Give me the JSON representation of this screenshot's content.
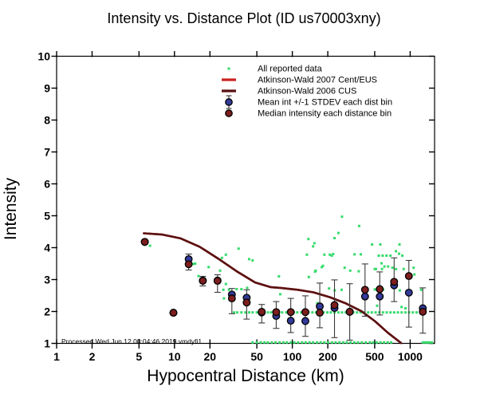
{
  "title": "Intensity vs. Distance Plot (ID us70003xny)",
  "footer": "Processed Wed Jun 12 00:04:46 2019 vmdyfi1",
  "colors": {
    "reported_green": "#35dc6b",
    "aw2007_red": "#cc2222",
    "aw2006_dark": "#5a1112",
    "mean_blue": "#333a99",
    "median_darkred": "#7d1e1e",
    "errorbar_gray": "#3a3a3a",
    "axis_black": "#000000"
  },
  "legend": [
    {
      "label": "All reported data",
      "marker": "dot",
      "color": "#35dc6b"
    },
    {
      "label": "Atkinson-Wald 2007 Cent/EUS",
      "marker": "line",
      "color": "#cc2222"
    },
    {
      "label": "Atkinson-Wald 2006 CUS",
      "marker": "line",
      "color": "#5a1112"
    },
    {
      "label": "Mean int +/-1 STDEV each dist bin",
      "marker": "mean",
      "color": "#333a99"
    },
    {
      "label": "Median intensity each distance bin",
      "marker": "median",
      "color": "#7d1e1e"
    }
  ],
  "chart_data": {
    "type": "scatter",
    "title": "Intensity vs. Distance Plot (ID us70003xny)",
    "xlabel": "Hypocentral Distance (km)",
    "ylabel": "Intensity",
    "x_scale": "log",
    "xlim": [
      1,
      1611
    ],
    "ylim": [
      1,
      10
    ],
    "x_ticks": [
      1,
      2,
      5,
      10,
      20,
      50,
      100,
      200,
      500,
      1000
    ],
    "y_ticks": [
      1,
      2,
      3,
      4,
      5,
      6,
      7,
      8,
      9,
      10
    ],
    "grid": false,
    "legend_position": "upper-center-right",
    "all_reported_points": [
      [
        6.2,
        4.06
      ],
      [
        12.7,
        3.45
      ],
      [
        14.4,
        3.49
      ],
      [
        15,
        3.5
      ],
      [
        16,
        3.11
      ],
      [
        19.5,
        3.39
      ],
      [
        24.4,
        3.28
      ],
      [
        25.3,
        3.68
      ],
      [
        26,
        2.68
      ],
      [
        26.3,
        2.41
      ],
      [
        27.3,
        3.78
      ],
      [
        27.3,
        2.86
      ],
      [
        29,
        2.68
      ],
      [
        33.7,
        2.7
      ],
      [
        35,
        3.97
      ],
      [
        37,
        2.7
      ],
      [
        41.4,
        2.74
      ],
      [
        43,
        3.64
      ],
      [
        46,
        3.6
      ],
      [
        77,
        3.1
      ],
      [
        79,
        2.54
      ],
      [
        133,
        3.78
      ],
      [
        137,
        4.27
      ],
      [
        138,
        3.08
      ],
      [
        150,
        4.04
      ],
      [
        154,
        4.14
      ],
      [
        156,
        3.25
      ],
      [
        158,
        3.28
      ],
      [
        163,
        2.26
      ],
      [
        178,
        3.39
      ],
      [
        182,
        3.43
      ],
      [
        187,
        3.78
      ],
      [
        205,
        2.72
      ],
      [
        208,
        3.78
      ],
      [
        216,
        3.75
      ],
      [
        222,
        3.8
      ],
      [
        228,
        4.3
      ],
      [
        229,
        2.66
      ],
      [
        246,
        4.46
      ],
      [
        262,
        2.68
      ],
      [
        264,
        4.97
      ],
      [
        278,
        3.37
      ],
      [
        310,
        3.28
      ],
      [
        337,
        3.79
      ],
      [
        366,
        3.26
      ],
      [
        369,
        4.68
      ],
      [
        381,
        3.79
      ],
      [
        475,
        4.1
      ],
      [
        501,
        3.33
      ],
      [
        501,
        2.69
      ],
      [
        512,
        3.33
      ],
      [
        512,
        2.69
      ],
      [
        524,
        2.18
      ],
      [
        542,
        3.75
      ],
      [
        558,
        4.1
      ],
      [
        571,
        3.51
      ],
      [
        577,
        3.33
      ],
      [
        584,
        3.75
      ],
      [
        590,
        2.69
      ],
      [
        605,
        3.41
      ],
      [
        630,
        3.75
      ],
      [
        650,
        3.41
      ],
      [
        680,
        3.75
      ],
      [
        707,
        3.37
      ],
      [
        758,
        3.89
      ],
      [
        758,
        3.33
      ],
      [
        805,
        3.81
      ],
      [
        812,
        4.1
      ],
      [
        816,
        2.66
      ],
      [
        845,
        2.14
      ],
      [
        858,
        3.75
      ],
      [
        880,
        3.33
      ],
      [
        912,
        2.1
      ],
      [
        1070,
        3.37
      ],
      [
        1086,
        3.16
      ],
      [
        1240,
        2.68
      ],
      [
        32,
        1.97
      ],
      [
        34,
        1.97
      ],
      [
        37,
        1.97
      ],
      [
        40,
        1.97
      ],
      [
        43,
        1.97
      ],
      [
        46,
        1.97
      ],
      [
        50,
        1.97
      ],
      [
        53,
        1.97
      ],
      [
        57,
        1.97
      ],
      [
        62,
        1.97
      ],
      [
        66,
        1.97
      ],
      [
        71,
        1.97
      ],
      [
        77,
        1.97
      ],
      [
        82,
        1.97
      ],
      [
        89,
        1.97
      ],
      [
        95,
        1.97
      ],
      [
        103,
        1.97
      ],
      [
        110,
        1.97
      ],
      [
        119,
        1.97
      ],
      [
        128,
        1.97
      ],
      [
        137,
        1.97
      ],
      [
        148,
        1.97
      ],
      [
        159,
        1.97
      ],
      [
        171,
        1.97
      ],
      [
        184,
        1.97
      ],
      [
        198,
        1.97
      ],
      [
        212,
        1.97
      ],
      [
        228,
        1.97
      ],
      [
        246,
        1.97
      ],
      [
        264,
        1.97
      ],
      [
        284,
        1.97
      ],
      [
        306,
        1.97
      ],
      [
        329,
        1.97
      ],
      [
        354,
        1.97
      ],
      [
        380,
        1.97
      ],
      [
        409,
        1.97
      ],
      [
        440,
        1.97
      ],
      [
        473,
        1.97
      ],
      [
        509,
        1.97
      ],
      [
        547,
        1.97
      ],
      [
        588,
        1.97
      ],
      [
        633,
        1.97
      ],
      [
        681,
        1.97
      ],
      [
        732,
        1.97
      ],
      [
        787,
        1.97
      ],
      [
        847,
        1.97
      ],
      [
        911,
        1.97
      ],
      [
        979,
        1.97
      ],
      [
        1053,
        1.97
      ],
      [
        1133,
        1.97
      ],
      [
        1218,
        1.97
      ],
      [
        46,
        1.03
      ],
      [
        50,
        1.03
      ],
      [
        54,
        1.03
      ],
      [
        58,
        1.03
      ],
      [
        62,
        1.03
      ],
      [
        67,
        1.03
      ],
      [
        72,
        1.03
      ],
      [
        78,
        1.03
      ],
      [
        84,
        1.03
      ],
      [
        90,
        1.03
      ],
      [
        97,
        1.03
      ],
      [
        104,
        1.03
      ],
      [
        112,
        1.03
      ],
      [
        121,
        1.03
      ],
      [
        130,
        1.03
      ],
      [
        140,
        1.03
      ],
      [
        150,
        1.03
      ],
      [
        162,
        1.03
      ],
      [
        174,
        1.03
      ],
      [
        187,
        1.03
      ],
      [
        201,
        1.03
      ],
      [
        217,
        1.03
      ],
      [
        233,
        1.03
      ],
      [
        251,
        1.03
      ],
      [
        270,
        1.03
      ],
      [
        290,
        1.03
      ],
      [
        312,
        1.03
      ],
      [
        336,
        1.03
      ],
      [
        361,
        1.03
      ],
      [
        389,
        1.03
      ],
      [
        420,
        1.03
      ],
      [
        455,
        1.03
      ],
      [
        485,
        1.03
      ],
      [
        520,
        1.03
      ],
      [
        560,
        1.03
      ],
      [
        600,
        1.03
      ],
      [
        645,
        1.03
      ],
      [
        690,
        1.03
      ],
      [
        1280,
        1.03
      ],
      [
        1340,
        1.03
      ],
      [
        1400,
        1.03
      ],
      [
        1460,
        1.03
      ],
      [
        1530,
        1.03
      ]
    ],
    "aw2006_curve": [
      [
        5.5,
        4.45
      ],
      [
        7.9,
        4.41
      ],
      [
        11.3,
        4.29
      ],
      [
        16.3,
        4.03
      ],
      [
        23.4,
        3.66
      ],
      [
        33.7,
        3.26
      ],
      [
        48.3,
        2.91
      ],
      [
        66,
        2.76
      ],
      [
        79,
        2.74
      ],
      [
        111,
        2.68
      ],
      [
        151,
        2.6
      ],
      [
        207,
        2.45
      ],
      [
        282,
        2.26
      ],
      [
        385,
        2.01
      ],
      [
        501,
        1.7
      ],
      [
        648,
        1.33
      ],
      [
        838,
        1.01
      ]
    ],
    "distance_bins": [
      {
        "d": 5.6,
        "mean": 4.18,
        "median": 4.18,
        "lo": null,
        "hi": null
      },
      {
        "d": 9.8,
        "mean": 1.96,
        "median": 1.96,
        "lo": null,
        "hi": null
      },
      {
        "d": 13.2,
        "mean": 3.64,
        "median": 3.48,
        "lo": 3.3,
        "hi": 3.8
      },
      {
        "d": 17.4,
        "mean": 2.97,
        "median": 2.96,
        "lo": 2.8,
        "hi": 3.1
      },
      {
        "d": 23.2,
        "mean": 2.97,
        "median": 2.96,
        "lo": 2.6,
        "hi": 3.15
      },
      {
        "d": 30.7,
        "mean": 2.53,
        "median": 2.41,
        "lo": 1.93,
        "hi": 2.72
      },
      {
        "d": 41,
        "mean": 2.43,
        "median": 2.28,
        "lo": 1.76,
        "hi": 2.68
      },
      {
        "d": 55,
        "mean": 1.97,
        "median": 1.99,
        "lo": 1.64,
        "hi": 2.22
      },
      {
        "d": 73,
        "mean": 1.86,
        "median": 1.98,
        "lo": 1.47,
        "hi": 2.31
      },
      {
        "d": 97,
        "mean": 1.71,
        "median": 1.98,
        "lo": 1.34,
        "hi": 2.41
      },
      {
        "d": 129,
        "mean": 1.7,
        "median": 1.98,
        "lo": 1.22,
        "hi": 2.49
      },
      {
        "d": 171,
        "mean": 2.16,
        "median": 1.96,
        "lo": 1.49,
        "hi": 2.89
      },
      {
        "d": 228,
        "mean": 2.11,
        "median": 2.2,
        "lo": 1.18,
        "hi": 2.99
      },
      {
        "d": 307,
        "mean": 1.99,
        "median": 1.99,
        "lo": 1.1,
        "hi": 2.87
      },
      {
        "d": 414,
        "mean": 2.47,
        "median": 2.68,
        "lo": 1.85,
        "hi": 3.49
      },
      {
        "d": 552,
        "mean": 2.47,
        "median": 2.7,
        "lo": 1.89,
        "hi": 3.24
      },
      {
        "d": 731,
        "mean": 2.82,
        "median": 2.93,
        "lo": 2.31,
        "hi": 3.68
      },
      {
        "d": 975,
        "mean": 2.59,
        "median": 3.11,
        "lo": 1.51,
        "hi": 3.6
      },
      {
        "d": 1280,
        "mean": 2.1,
        "median": 1.99,
        "lo": 1.32,
        "hi": 2.74
      }
    ]
  }
}
